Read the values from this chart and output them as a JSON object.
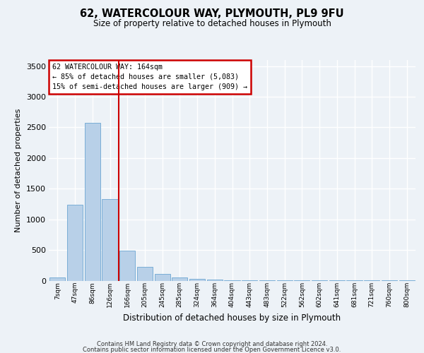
{
  "title": "62, WATERCOLOUR WAY, PLYMOUTH, PL9 9FU",
  "subtitle": "Size of property relative to detached houses in Plymouth",
  "xlabel": "Distribution of detached houses by size in Plymouth",
  "ylabel": "Number of detached properties",
  "categories": [
    "7sqm",
    "47sqm",
    "86sqm",
    "126sqm",
    "166sqm",
    "205sqm",
    "245sqm",
    "285sqm",
    "324sqm",
    "364sqm",
    "404sqm",
    "443sqm",
    "483sqm",
    "522sqm",
    "562sqm",
    "602sqm",
    "641sqm",
    "681sqm",
    "721sqm",
    "760sqm",
    "800sqm"
  ],
  "values": [
    50,
    1240,
    2570,
    1330,
    490,
    230,
    115,
    50,
    28,
    15,
    10,
    8,
    5,
    3,
    2,
    2,
    2,
    1,
    1,
    1,
    1
  ],
  "bar_color": "#b8d0e8",
  "bar_edge_color": "#7aaed6",
  "highlight_line_color": "#cc0000",
  "annotation_title": "62 WATERCOLOUR WAY: 164sqm",
  "annotation_line1": "← 85% of detached houses are smaller (5,083)",
  "annotation_line2": "15% of semi-detached houses are larger (909) →",
  "annotation_box_color": "#ffffff",
  "annotation_box_edge": "#cc0000",
  "footer_line1": "Contains HM Land Registry data © Crown copyright and database right 2024.",
  "footer_line2": "Contains public sector information licensed under the Open Government Licence v3.0.",
  "bg_color": "#edf2f7",
  "plot_bg_color": "#edf2f7",
  "grid_color": "#ffffff",
  "ylim": [
    0,
    3600
  ],
  "yticks": [
    0,
    500,
    1000,
    1500,
    2000,
    2500,
    3000,
    3500
  ]
}
